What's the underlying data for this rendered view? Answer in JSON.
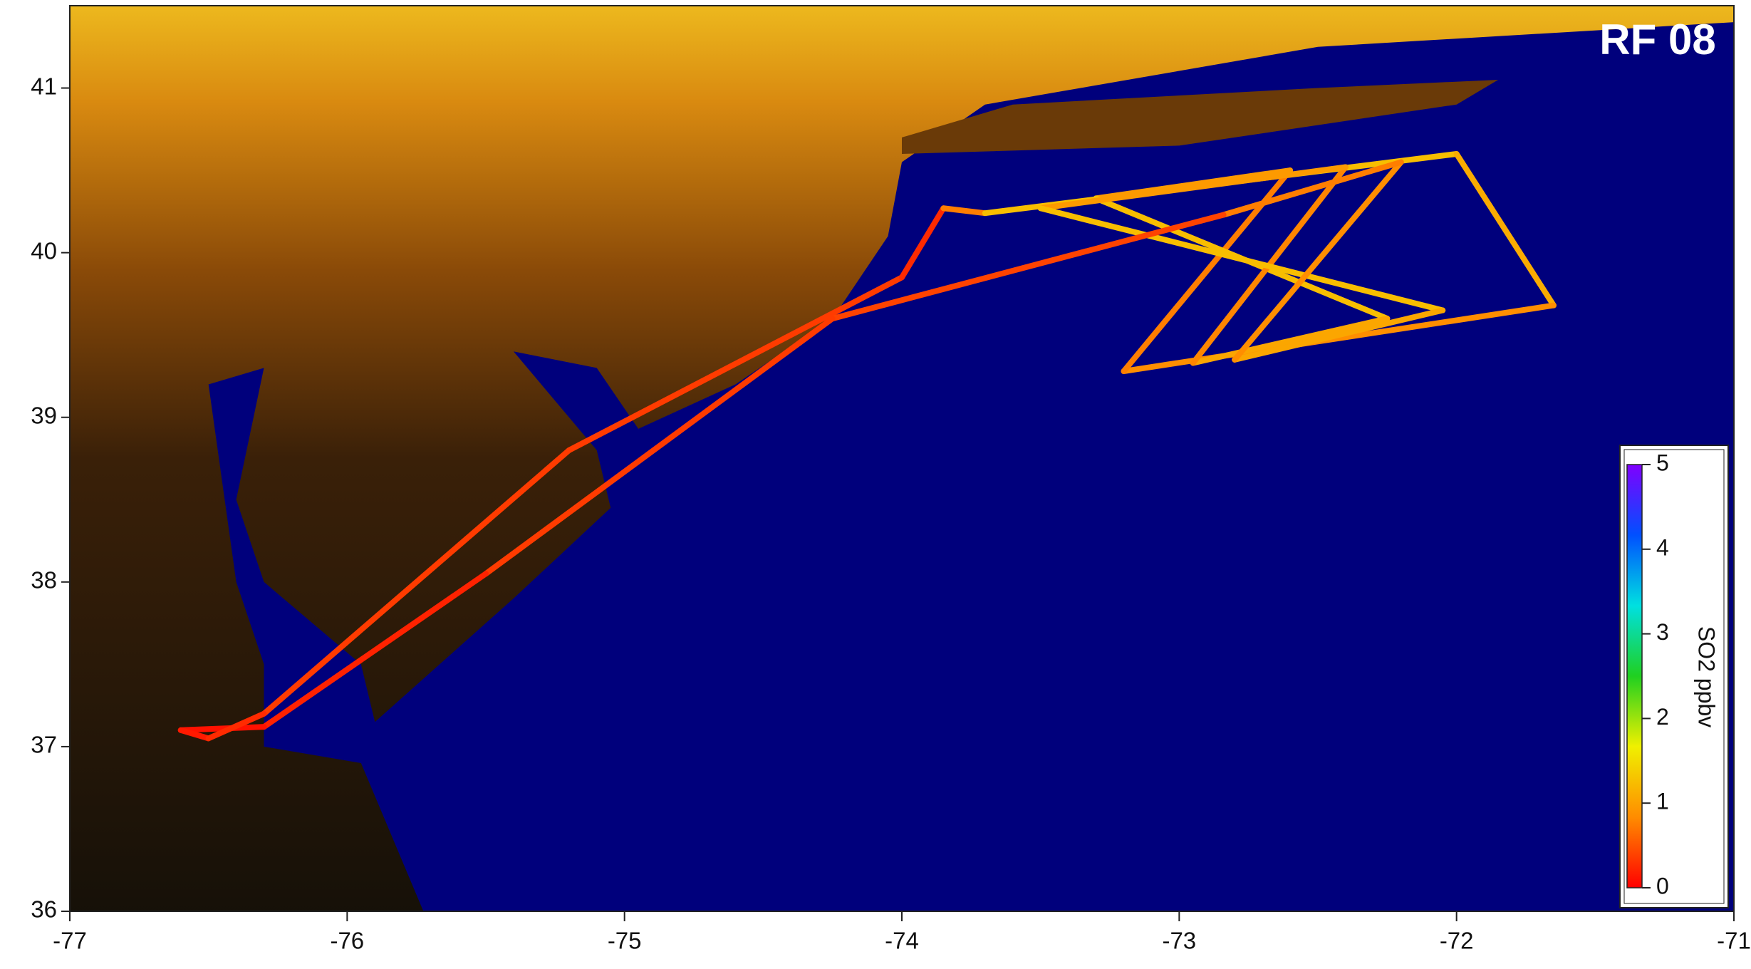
{
  "chart_data": {
    "type": "map",
    "title": "RF 08",
    "xlim": [
      -77,
      -71
    ],
    "ylim": [
      36,
      41.5
    ],
    "xticks": [
      -77,
      -76,
      -75,
      -74,
      -73,
      -72,
      -71
    ],
    "yticks": [
      36,
      37,
      38,
      39,
      40,
      41
    ],
    "track": {
      "lon": [
        -76.3,
        -75.2,
        -74.0,
        -73.85,
        -73.7,
        -72.0,
        -71.65,
        -73.2,
        -72.6,
        -73.3,
        -72.25,
        -72.95,
        -72.4,
        -73.5,
        -72.05,
        -72.8,
        -72.2,
        -72.84,
        -74.25,
        -75.5,
        -76.3,
        -76.6,
        -76.5,
        -76.3
      ],
      "lat": [
        37.2,
        38.8,
        39.85,
        40.27,
        40.24,
        40.6,
        39.68,
        39.28,
        40.5,
        40.33,
        39.6,
        39.33,
        40.52,
        40.27,
        39.65,
        39.35,
        40.55,
        40.23,
        39.6,
        38.05,
        37.12,
        37.1,
        37.05,
        37.2
      ],
      "so2": [
        0.3,
        0.4,
        0.3,
        0.2,
        1.3,
        1.2,
        1.0,
        0.7,
        0.8,
        1.1,
        1.4,
        0.7,
        0.9,
        1.0,
        1.5,
        0.6,
        1.1,
        0.4,
        0.4,
        0.3,
        0.1,
        0.1,
        0.2,
        0.3
      ]
    },
    "colorbar": {
      "label": "SO2 ppbv",
      "lim": [
        0,
        5
      ],
      "ticks": [
        0,
        1,
        2,
        3,
        4,
        5
      ],
      "colors": [
        "#ff0000",
        "#ff8c00",
        "#f0f000",
        "#20d020",
        "#00e0e0",
        "#0050ff",
        "#8000ff"
      ]
    },
    "ocean_color": "#00007c"
  }
}
